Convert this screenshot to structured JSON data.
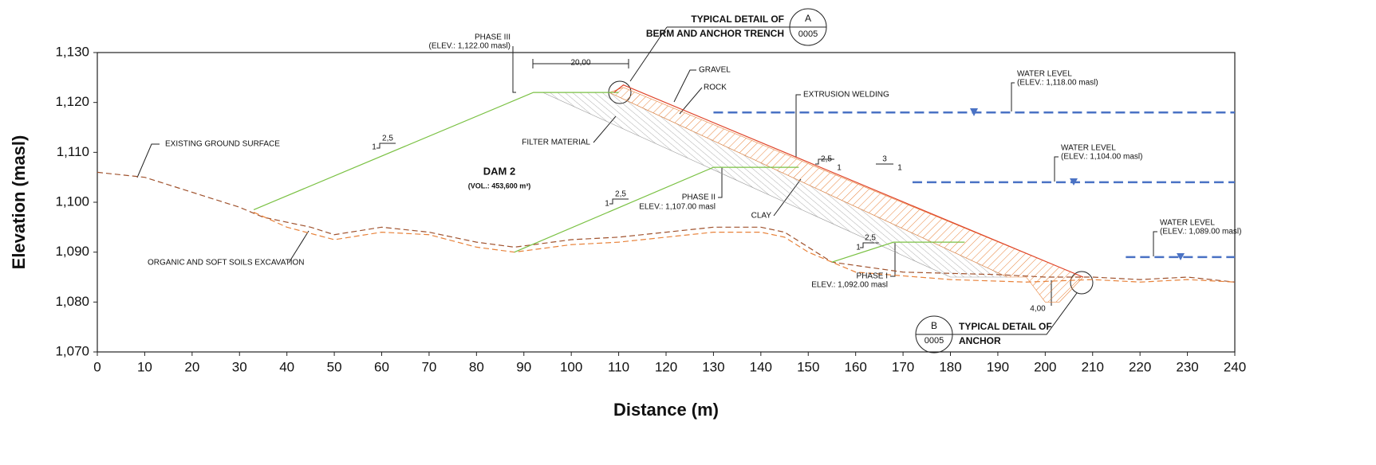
{
  "chart_data": {
    "type": "line",
    "xlabel": "Distance (m)",
    "ylabel": "Elevation (masl)",
    "xlim": [
      0,
      240
    ],
    "ylim": [
      1070,
      1130
    ],
    "xticks": [
      0,
      10,
      20,
      30,
      40,
      50,
      60,
      70,
      80,
      90,
      100,
      110,
      120,
      130,
      140,
      150,
      160,
      170,
      180,
      190,
      200,
      210,
      220,
      230,
      240
    ],
    "yticks": [
      {
        "value": 1070,
        "label": "1,070"
      },
      {
        "value": 1080,
        "label": "1,080"
      },
      {
        "value": 1090,
        "label": "1,090"
      },
      {
        "value": 1100,
        "label": "1,100"
      },
      {
        "value": 1110,
        "label": "1,110"
      },
      {
        "value": 1120,
        "label": "1,120"
      },
      {
        "value": 1130,
        "label": "1,130"
      }
    ],
    "series": [
      {
        "name": "FILTER MATERIAL",
        "kind": "area",
        "color": "#9a9a9a",
        "x": [
          94,
          108,
          192,
          180
        ],
        "values": [
          1122,
          1122,
          1085,
          1085
        ]
      },
      {
        "name": "CLAY",
        "kind": "area",
        "color": "#e8823a",
        "x": [
          108,
          111,
          208,
          203,
          200,
          196,
          192
        ],
        "values": [
          1122,
          1123,
          1085,
          1080,
          1080,
          1085,
          1085
        ]
      },
      {
        "name": "EXISTING GROUND SURFACE",
        "color": "#a0522d",
        "dash": true,
        "x": [
          0,
          5,
          10,
          20,
          30,
          35,
          45,
          50,
          60,
          70,
          80,
          88,
          100,
          110,
          120,
          130,
          140,
          145,
          150,
          155,
          170,
          190,
          200,
          210,
          220,
          230,
          240
        ],
        "values": [
          1106,
          1105.5,
          1105,
          1102,
          1099,
          1097,
          1095,
          1093.5,
          1095,
          1094,
          1092,
          1091,
          1092.5,
          1093,
          1094,
          1095,
          1095,
          1094,
          1091,
          1088,
          1086,
          1085.5,
          1085,
          1085,
          1084.5,
          1085,
          1084
        ]
      },
      {
        "name": "ORGANIC AND SOFT SOILS EXCAVATION",
        "color": "#e8823a",
        "dash": true,
        "x": [
          33,
          40,
          50,
          60,
          70,
          80,
          88,
          100,
          110,
          120,
          130,
          140,
          145,
          150,
          160,
          180,
          196,
          210,
          220,
          230,
          240
        ],
        "values": [
          1098,
          1095,
          1092.5,
          1094,
          1093.5,
          1091,
          1090,
          1091.5,
          1092,
          1093,
          1094,
          1094,
          1093,
          1090,
          1086,
          1084.5,
          1084,
          1084.5,
          1084,
          1084.5,
          1084
        ]
      },
      {
        "name": "PHASE III",
        "color": "#7ac143",
        "x": [
          33,
          92,
          110
        ],
        "values": [
          1098.5,
          1122,
          1122
        ]
      },
      {
        "name": "PHASE II",
        "color": "#7ac143",
        "x": [
          88,
          130,
          148
        ],
        "values": [
          1090,
          1107,
          1107
        ]
      },
      {
        "name": "PHASE I",
        "color": "#7ac143",
        "x": [
          155,
          168,
          183
        ],
        "values": [
          1088,
          1092,
          1092
        ]
      },
      {
        "name": "GRAVEL",
        "color": "#e0452a",
        "x": [
          109,
          111,
          208
        ],
        "values": [
          1122,
          1123.5,
          1085
        ]
      },
      {
        "name": "WATER LEVEL",
        "color": "#4a72c4",
        "dash": true,
        "wide": true,
        "x": [
          130,
          240
        ],
        "values": [
          1118,
          1118
        ]
      },
      {
        "name": "WATER LEVEL",
        "color": "#4a72c4",
        "dash": true,
        "wide": true,
        "x": [
          172,
          240
        ],
        "values": [
          1104,
          1104
        ]
      },
      {
        "name": "WATER LEVEL",
        "color": "#4a72c4",
        "dash": true,
        "wide": true,
        "x": [
          217,
          240
        ],
        "values": [
          1089,
          1089
        ]
      }
    ],
    "annotations": [
      "TYPICAL DETAIL OF",
      "BERM AND ANCHOR TRENCH",
      "A",
      "0005",
      "20,00",
      "ROCK",
      "EXTRUSION WELDING",
      "(ELEV.: 1,118.00 masl)",
      "(ELEV.: 1,104.00 masl)",
      "(ELEV.: 1,089.00 masl)",
      "2,5",
      "1",
      "2,5",
      "1",
      "2,5",
      "1",
      "3",
      "1",
      "2,5",
      "1",
      "DAM 2",
      "(VOL.: 453,600 m³)",
      "4,00",
      "B",
      "0005",
      "TYPICAL DETAIL OF",
      "ANCHOR",
      "(ELEV.: 1,122.00 masl)",
      "ELEV.: 1,107.00 masl",
      "ELEV.: 1,092.00 masl"
    ]
  }
}
